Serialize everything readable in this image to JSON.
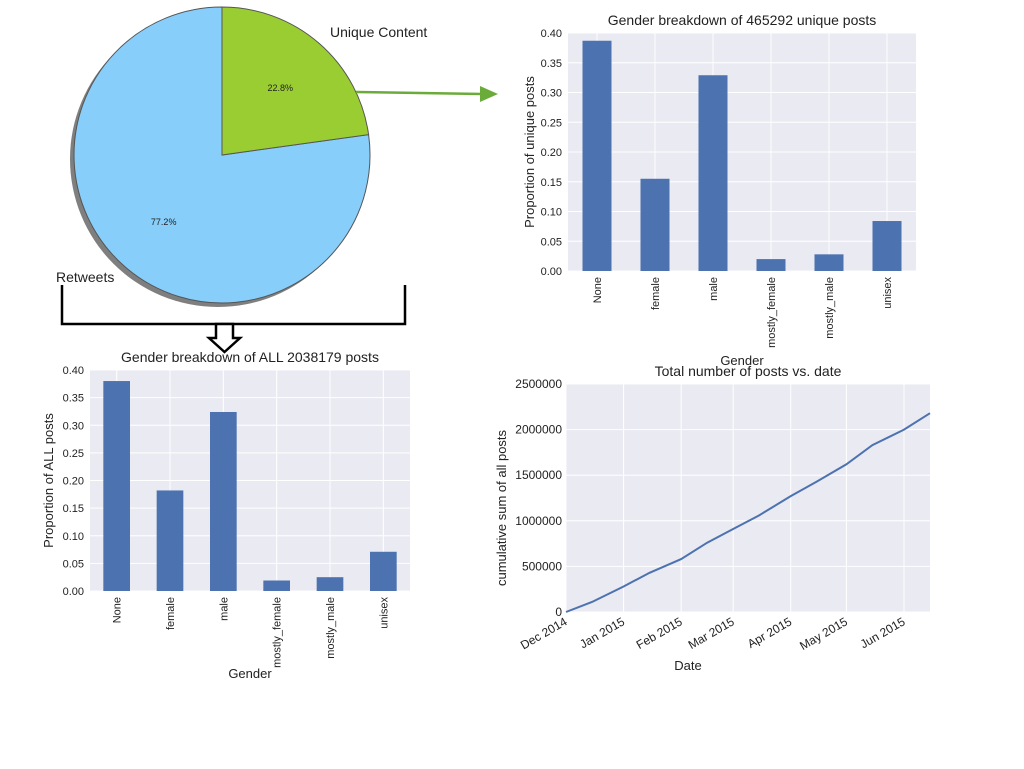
{
  "colors": {
    "pie_retweets": "#87CEFA",
    "pie_unique": "#9ACD32",
    "bar": "#4C72B0",
    "line": "#4C72B0",
    "plot_bg": "#EAEAF2",
    "grid": "#FFFFFF",
    "arrow": "#6AAB3A",
    "bracket": "#000000"
  },
  "chart_data": [
    {
      "type": "pie",
      "labels": [
        "Unique Content",
        "Retweets"
      ],
      "values": [
        22.8,
        77.2
      ],
      "value_labels": [
        "22.8%",
        "77.2%"
      ],
      "colors": [
        "#9ACD32",
        "#87CEFA"
      ]
    },
    {
      "type": "bar",
      "title": "Gender breakdown of 465292 unique posts",
      "xlabel": "Gender",
      "ylabel": "Proportion of unique posts",
      "categories": [
        "None",
        "female",
        "male",
        "mostly_female",
        "mostly_male",
        "unisex"
      ],
      "values": [
        0.387,
        0.155,
        0.329,
        0.02,
        0.028,
        0.084
      ],
      "ylim": [
        0,
        0.4
      ],
      "yticks": [
        "0.00",
        "0.05",
        "0.10",
        "0.15",
        "0.20",
        "0.25",
        "0.30",
        "0.35",
        "0.40"
      ],
      "grid": true
    },
    {
      "type": "bar",
      "title": "Gender breakdown of ALL 2038179 posts",
      "xlabel": "Gender",
      "ylabel": "Proportion of ALL posts",
      "categories": [
        "None",
        "female",
        "male",
        "mostly_female",
        "mostly_male",
        "unisex"
      ],
      "values": [
        0.38,
        0.182,
        0.324,
        0.019,
        0.025,
        0.071
      ],
      "ylim": [
        0,
        0.4
      ],
      "yticks": [
        "0.00",
        "0.05",
        "0.10",
        "0.15",
        "0.20",
        "0.25",
        "0.30",
        "0.35",
        "0.40"
      ],
      "grid": true
    },
    {
      "type": "line",
      "title": "Total number of posts vs. date",
      "xlabel": "Date",
      "ylabel": "cumulative sum of all posts",
      "xlim": [
        "2014-12-01",
        "2015-06-15"
      ],
      "ylim": [
        0,
        2500000
      ],
      "xticks": [
        "Dec 2014",
        "Jan 2015",
        "Feb 2015",
        "Mar 2015",
        "Apr 2015",
        "May 2015",
        "Jun 2015"
      ],
      "yticks": [
        "0",
        "500000",
        "1000000",
        "1500000",
        "2000000",
        "2500000"
      ],
      "x": [
        "2014-12-01",
        "2014-12-15",
        "2015-01-01",
        "2015-01-15",
        "2015-02-01",
        "2015-02-15",
        "2015-03-01",
        "2015-03-15",
        "2015-04-01",
        "2015-04-15",
        "2015-05-01",
        "2015-05-15",
        "2015-06-01",
        "2015-06-15"
      ],
      "y": [
        0,
        110000,
        280000,
        430000,
        580000,
        760000,
        910000,
        1060000,
        1270000,
        1430000,
        1620000,
        1830000,
        2000000,
        2180000
      ],
      "grid": true
    }
  ],
  "pie_labels": {
    "unique": "Unique Content",
    "retweets": "Retweets"
  }
}
